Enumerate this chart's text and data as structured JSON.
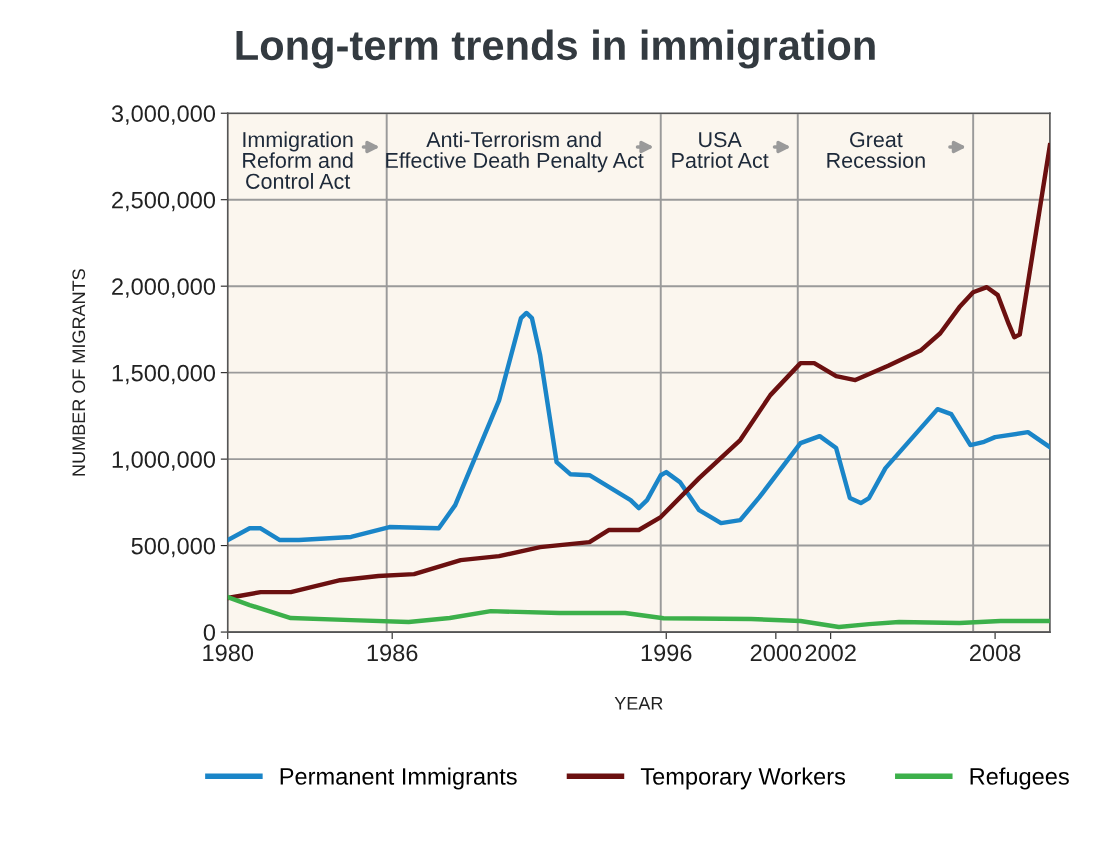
{
  "chart_data": {
    "type": "line",
    "title": "Long-term trends in immigration",
    "xlabel": "YEAR",
    "ylabel": "NUMBER OF MIGRANTS",
    "annotations": [
      "Immigration\nReform and\nControl Act",
      "Anti-Terrorism and\nEffective Death Penalty Act",
      "USA\nPatriot Act",
      "Great\nRecession"
    ],
    "xlim": [
      1980,
      2010
    ],
    "xticks": [
      1980,
      1986,
      1996,
      2000,
      2002,
      2008
    ],
    "ylim": [
      0,
      3000000
    ],
    "yticks": [
      {
        "value": 0,
        "label": "0"
      },
      {
        "value": 500000,
        "label": "500,000"
      },
      {
        "value": 1000000,
        "label": "1,000,000"
      },
      {
        "value": 1500000,
        "label": "1,500,000"
      },
      {
        "value": 2000000,
        "label": "2,000,000"
      },
      {
        "value": 2500000,
        "label": "2,500,000"
      },
      {
        "value": 3000000,
        "label": "3,000,000"
      }
    ],
    "grid": "y",
    "legend": "bottom",
    "marker": "none",
    "line_style": "solid",
    "ref_lines": [
      {
        "axis": "x",
        "value": 1985.8,
        "label": null,
        "color": "#9a9a9a"
      },
      {
        "axis": "x",
        "value": 1995.8,
        "label": null,
        "color": "#9a9a9a"
      },
      {
        "axis": "x",
        "value": 2000.8,
        "label": null,
        "color": "#9a9a9a"
      },
      {
        "axis": "x",
        "value": 2007.2,
        "label": null,
        "color": "#9a9a9a"
      }
    ],
    "series": [
      {
        "name": "Permanent Immigrants",
        "color": "#1a85c8",
        "x": [
          1980.0,
          1980.8,
          1981.2,
          1981.9,
          1982.6,
          1984.5,
          1985.9,
          1987.7,
          1988.3,
          1989.9,
          1990.7,
          1990.9,
          1991.1,
          1991.4,
          1992.0,
          1992.5,
          1993.2,
          1994.7,
          1995.0,
          1995.3,
          1995.8,
          1996.0,
          1996.5,
          1997.2,
          1998.0,
          1998.7,
          1999.4,
          2000.9,
          2001.6,
          2002.2,
          2002.7,
          2003.1,
          2003.4,
          2004.0,
          2005.9,
          2006.4,
          2007.1,
          2007.6,
          2008.0,
          2009.2,
          2010.0
        ],
        "values": [
          532000,
          600000,
          600000,
          532000,
          532000,
          550000,
          607000,
          600000,
          734000,
          1340000,
          1815000,
          1845000,
          1815000,
          1600000,
          983000,
          913000,
          907000,
          763000,
          717000,
          763000,
          907000,
          925000,
          867000,
          705000,
          630000,
          647000,
          780000,
          1092000,
          1133000,
          1064000,
          775000,
          746000,
          775000,
          948000,
          1289000,
          1260000,
          1081000,
          1100000,
          1127000,
          1156000,
          1069000
        ]
      },
      {
        "name": "Temporary Workers",
        "color": "#6b1010",
        "x": [
          1980.0,
          1981.2,
          1982.3,
          1984.1,
          1985.5,
          1986.8,
          1988.5,
          1989.9,
          1991.4,
          1993.2,
          1993.9,
          1995.0,
          1995.8,
          1997.2,
          1998.7,
          1999.8,
          2000.9,
          2001.4,
          2002.2,
          2002.9,
          2004.1,
          2005.3,
          2006.0,
          2006.7,
          2007.2,
          2007.7,
          2008.1,
          2008.5,
          2008.7,
          2008.9,
          2010.0
        ],
        "values": [
          197000,
          231000,
          231000,
          300000,
          324000,
          335000,
          416000,
          439000,
          491000,
          520000,
          590000,
          590000,
          665000,
          890000,
          1110000,
          1370000,
          1555000,
          1555000,
          1480000,
          1457000,
          1540000,
          1630000,
          1728000,
          1879000,
          1965000,
          1994000,
          1948000,
          1780000,
          1705000,
          1720000,
          2815000
        ]
      },
      {
        "name": "Refugees",
        "color": "#3cb04a",
        "x": [
          1980.0,
          1980.8,
          1982.3,
          1984.5,
          1986.6,
          1988.1,
          1989.6,
          1992.1,
          1994.5,
          1995.9,
          1999.1,
          2000.9,
          2002.3,
          2003.4,
          2004.5,
          2006.7,
          2008.2,
          2010.0
        ],
        "values": [
          202000,
          156000,
          81000,
          69000,
          58000,
          81000,
          121000,
          110000,
          110000,
          80000,
          75000,
          64000,
          29000,
          46000,
          58000,
          52000,
          64000,
          64000
        ]
      }
    ]
  }
}
